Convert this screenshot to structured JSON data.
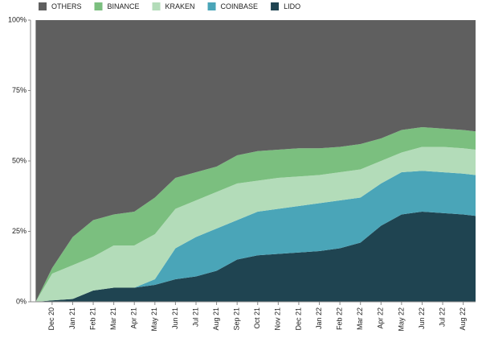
{
  "chart_data": {
    "type": "area",
    "stacked": true,
    "x": [
      -0.8,
      0,
      1,
      2,
      3,
      4,
      5,
      6,
      7,
      8,
      9,
      10,
      11,
      12,
      13,
      14,
      15,
      16,
      17,
      18,
      19,
      20,
      20.6
    ],
    "xlim": [
      -1.05,
      20.6
    ],
    "xticks": [
      {
        "value": 0,
        "label": "Dec 20"
      },
      {
        "value": 1,
        "label": "Jan 21"
      },
      {
        "value": 2,
        "label": "Feb 21"
      },
      {
        "value": 3,
        "label": "Mar 21"
      },
      {
        "value": 4,
        "label": "Apr 21"
      },
      {
        "value": 5,
        "label": "May 21"
      },
      {
        "value": 6,
        "label": "Jun 21"
      },
      {
        "value": 7,
        "label": "Jul 21"
      },
      {
        "value": 8,
        "label": "Aug 21"
      },
      {
        "value": 9,
        "label": "Sep 21"
      },
      {
        "value": 10,
        "label": "Oct 21"
      },
      {
        "value": 11,
        "label": "Nov 21"
      },
      {
        "value": 12,
        "label": "Dec 21"
      },
      {
        "value": 13,
        "label": "Jan 22"
      },
      {
        "value": 14,
        "label": "Feb 22"
      },
      {
        "value": 15,
        "label": "Mar 22"
      },
      {
        "value": 16,
        "label": "Apr 22"
      },
      {
        "value": 17,
        "label": "May 22"
      },
      {
        "value": 18,
        "label": "Jun 22"
      },
      {
        "value": 19,
        "label": "Jul 22"
      },
      {
        "value": 20,
        "label": "Aug 22"
      }
    ],
    "ylim": [
      0,
      100
    ],
    "yticks": [
      {
        "value": 0,
        "label": "0%"
      },
      {
        "value": 25,
        "label": "25%"
      },
      {
        "value": 50,
        "label": "50%"
      },
      {
        "value": 75,
        "label": "75%"
      },
      {
        "value": 100,
        "label": "100%"
      }
    ],
    "series": [
      {
        "name": "OTHERS",
        "color": "#5f5f5f",
        "values": [
          100,
          88,
          77,
          71,
          69,
          68,
          63,
          56,
          54,
          52,
          48,
          46.5,
          46,
          45.5,
          45.5,
          45,
          44,
          42,
          39,
          38,
          38.5,
          39,
          39.5
        ]
      },
      {
        "name": "BINANCE",
        "color": "#7bbf7f",
        "values": [
          0,
          2,
          10,
          13,
          11,
          12,
          13,
          11,
          10,
          9,
          10,
          10.5,
          10,
          10,
          9.5,
          9,
          9,
          8,
          8,
          7,
          6.5,
          6.5,
          6.5
        ]
      },
      {
        "name": "KRAKEN",
        "color": "#b3dcb9",
        "values": [
          0,
          9.5,
          12,
          12,
          15,
          15,
          16,
          14,
          13,
          13,
          13,
          11,
          11,
          10.5,
          10,
          10,
          10,
          8,
          7,
          8.5,
          9,
          9,
          9
        ]
      },
      {
        "name": "COINBASE",
        "color": "#4aa5b8",
        "values": [
          0,
          0,
          0,
          0,
          0,
          0,
          2,
          11,
          14,
          15,
          14,
          15.5,
          16,
          16.5,
          17,
          17,
          16,
          15,
          15,
          14.5,
          14.5,
          14.5,
          14.5
        ]
      },
      {
        "name": "LIDO",
        "color": "#1f4451",
        "values": [
          0,
          0.5,
          1,
          4,
          5,
          5,
          6,
          8,
          9,
          11,
          15,
          16.5,
          17,
          17.5,
          18,
          19,
          21,
          27,
          31,
          32,
          31.5,
          31,
          30.5
        ]
      }
    ]
  }
}
